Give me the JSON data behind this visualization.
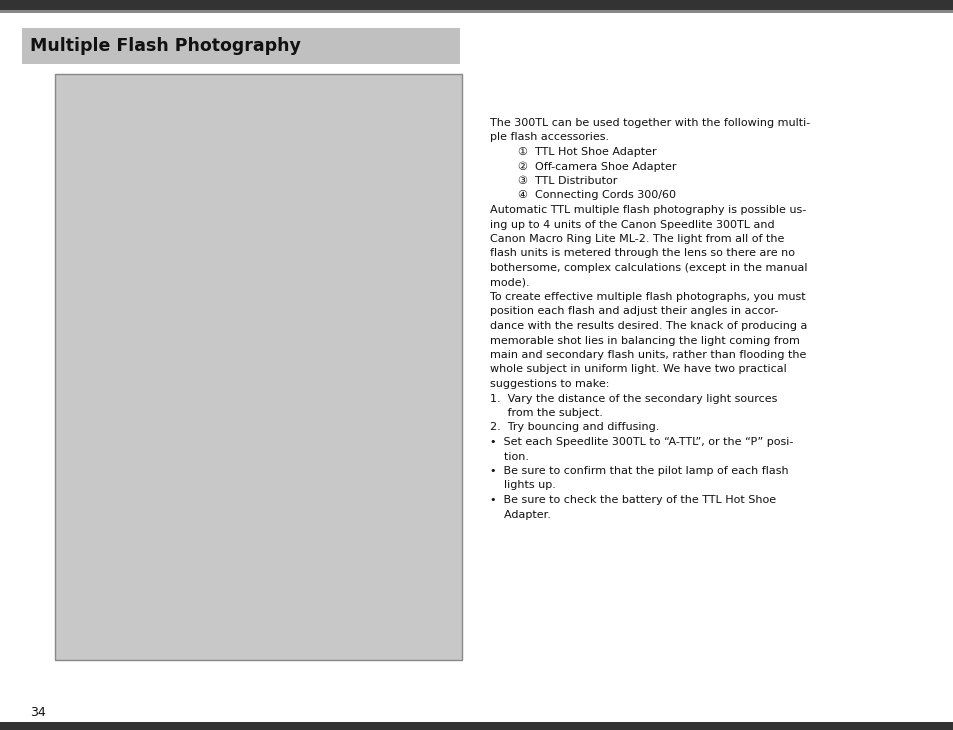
{
  "bg_color": "#ffffff",
  "top_bar_color": "#333333",
  "bottom_bar_color": "#333333",
  "title_box_bg": "#c0c0c0",
  "title_text": "Multiple Flash Photography",
  "title_fontsize": 12.5,
  "image_box_facecolor": "#c8c8c8",
  "image_box_edgecolor": "#888888",
  "page_number": "34",
  "page_number_fontsize": 9,
  "body_fontsize": 8.0,
  "intro_line1": "The 300TL can be used together with the following multi-",
  "intro_line2": "ple flash accessories.",
  "list_items": [
    "①  TTL Hot Shoe Adapter",
    "②  Off-camera Shoe Adapter",
    "③  TTL Distributor",
    "④  Connecting Cords 300/60"
  ],
  "para1_lines": [
    "Automatic TTL multiple flash photography is possible us-",
    "ing up to 4 units of the Canon Speedlite 300TL and",
    "Canon Macro Ring Lite ML-2. The light from all of the",
    "flash units is metered through the lens so there are no",
    "bothersome, complex calculations (except in the manual",
    "mode)."
  ],
  "para2_lines": [
    "To create effective multiple flash photographs, you must",
    "position each flash and adjust their angles in accor-",
    "dance with the results desired. The knack of producing a",
    "memorable shot lies in balancing the light coming from",
    "main and secondary flash units, rather than flooding the",
    "whole subject in uniform light. We have two practical",
    "suggestions to make:"
  ],
  "num1_lines": [
    "1.  Vary the distance of the secondary light sources",
    "     from the subject."
  ],
  "num2_line": "2.  Try bouncing and diffusing.",
  "bullet1_lines": [
    "•  Set each Speedlite 300TL to “A-TTL”, or the “P” posi-",
    "    tion."
  ],
  "bullet2_lines": [
    "•  Be sure to confirm that the pilot lamp of each flash",
    "    lights up."
  ],
  "bullet3_lines": [
    "•  Be sure to check the battery of the TTL Hot Shoe",
    "    Adapter."
  ]
}
